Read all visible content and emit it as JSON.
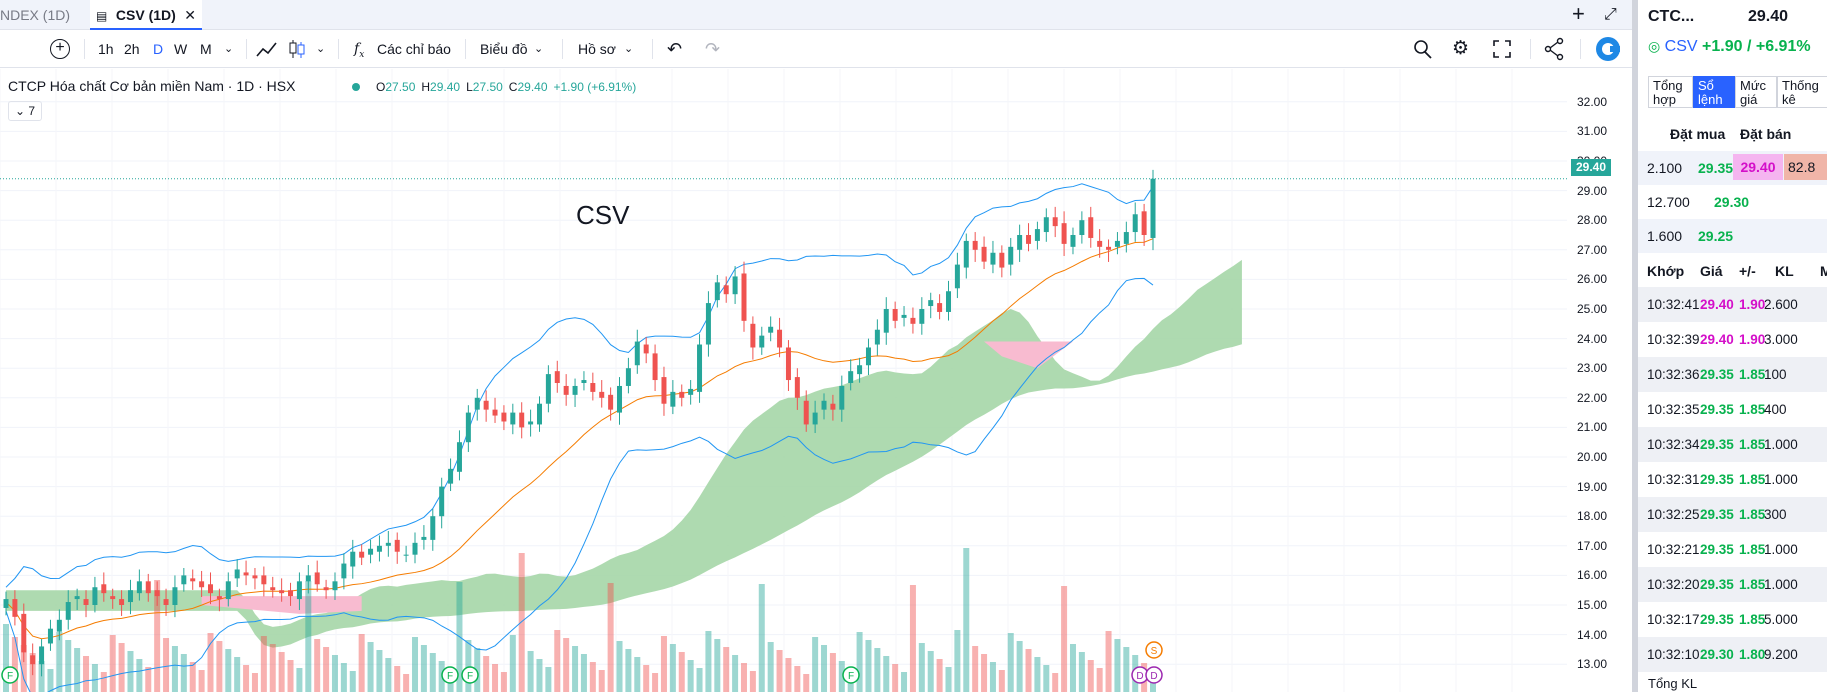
{
  "tabs": [
    {
      "label": "NDEX (1D)"
    },
    {
      "label": "CSV (1D)"
    }
  ],
  "toolbar": {
    "intervals": [
      "1h",
      "2h",
      "D",
      "W",
      "M"
    ],
    "active_interval": "D",
    "indicators_label": "Các chỉ báo",
    "chart_label": "Biểu đồ",
    "profile_label": "Hồ sơ"
  },
  "legend": {
    "title": "CTCP Hóa chất Cơ bản miền Nam · 1D · HSX",
    "o_label": "O",
    "o_val": "27.50",
    "h_label": "H",
    "h_val": "29.40",
    "l_label": "L",
    "l_val": "27.50",
    "c_label": "C",
    "c_val": "29.40",
    "change": "+1.90 (+6.91%)",
    "collapse_count": "7"
  },
  "watermark": "CSV",
  "last_price_tag": "29.40",
  "colors": {
    "up": "#26a69a",
    "down": "#ef5350",
    "accent": "#2962ff",
    "band": "#2196f3",
    "ma": "#f57c00",
    "cloud_up": "#a5d6a7",
    "cloud_down": "#f8bbd0"
  },
  "chart_data": {
    "type": "candlestick",
    "y_ticks": [
      "32.00",
      "31.00",
      "30.00",
      "29.00",
      "28.00",
      "27.00",
      "26.00",
      "25.00",
      "24.00",
      "23.00",
      "22.00",
      "21.00",
      "20.00",
      "19.00",
      "18.00",
      "17.00",
      "16.00",
      "15.00",
      "14.00",
      "13.00"
    ],
    "ylim": [
      12.6,
      32.6
    ],
    "last_close": 29.4,
    "markers": [
      "F",
      "F",
      "F",
      "F",
      "S",
      "D",
      "D"
    ],
    "close_series": [
      15.2,
      14.6,
      13.4,
      13.0,
      13.6,
      14.2,
      14.5,
      15.1,
      15.3,
      15.0,
      15.6,
      15.4,
      15.2,
      15.0,
      15.5,
      15.8,
      15.4,
      15.3,
      15.0,
      15.6,
      16.0,
      15.8,
      15.6,
      15.4,
      15.2,
      15.8,
      16.2,
      16.0,
      15.9,
      15.7,
      15.5,
      15.4,
      15.3,
      15.8,
      16.0,
      15.7,
      15.5,
      15.8,
      16.4,
      16.8,
      16.6,
      16.9,
      17.0,
      17.1,
      16.8,
      16.7,
      17.1,
      17.3,
      18.0,
      19.0,
      19.6,
      20.5,
      21.5,
      22.0,
      21.6,
      21.4,
      21.2,
      21.5,
      21.0,
      21.2,
      21.8,
      22.8,
      22.5,
      22.1,
      22.4,
      22.6,
      22.2,
      22.0,
      21.6,
      22.4,
      23.0,
      23.9,
      23.5,
      22.6,
      21.8,
      22.2,
      22.0,
      22.3,
      23.8,
      25.2,
      25.9,
      25.5,
      26.1,
      24.6,
      23.7,
      24.1,
      24.4,
      23.7,
      22.6,
      22.0,
      21.1,
      21.5,
      21.9,
      21.6,
      22.4,
      22.9,
      23.1,
      23.7,
      24.3,
      25.0,
      24.6,
      24.8,
      24.5,
      25.0,
      25.3,
      24.9,
      25.6,
      26.5,
      27.3,
      27.0,
      26.6,
      26.9,
      26.4,
      27.1,
      27.5,
      27.2,
      27.7,
      28.1,
      27.8,
      27.2,
      27.5,
      28.0,
      27.4,
      27.1,
      27.0,
      27.3,
      27.6,
      28.2,
      27.5,
      29.4
    ]
  },
  "panel": {
    "symbol_short": "CTC...",
    "price": "29.40",
    "symbol": "CSV",
    "change": "+1.90 / +6.91%",
    "tabs": [
      {
        "label": "Tổng hợp"
      },
      {
        "label": "Sổ lệnh"
      },
      {
        "label": "Mức giá"
      },
      {
        "label": "Thống kê"
      }
    ],
    "orderbook_head_buy": "Đặt mua",
    "orderbook_head_sell": "Đặt bán",
    "bids": [
      {
        "vol": "2.100",
        "price": "29.35"
      },
      {
        "vol": "12.700",
        "price": "29.30"
      },
      {
        "vol": "1.600",
        "price": "29.25"
      }
    ],
    "ask_price": "29.40",
    "ask_vol": "82.8",
    "trade_cols": [
      "Khớp",
      "Giá",
      "+/-",
      "KL",
      "M"
    ],
    "trades": [
      {
        "t": "10:32:41",
        "p": "29.40",
        "d": "1.90",
        "v": "2.600",
        "c": "up"
      },
      {
        "t": "10:32:39",
        "p": "29.40",
        "d": "1.90",
        "v": "3.000",
        "c": "up"
      },
      {
        "t": "10:32:36",
        "p": "29.35",
        "d": "1.85",
        "v": "100",
        "c": "green"
      },
      {
        "t": "10:32:35",
        "p": "29.35",
        "d": "1.85",
        "v": "400",
        "c": "green"
      },
      {
        "t": "10:32:34",
        "p": "29.35",
        "d": "1.85",
        "v": "1.000",
        "c": "green"
      },
      {
        "t": "10:32:31",
        "p": "29.35",
        "d": "1.85",
        "v": "1.000",
        "c": "green"
      },
      {
        "t": "10:32:25",
        "p": "29.35",
        "d": "1.85",
        "v": "300",
        "c": "green"
      },
      {
        "t": "10:32:21",
        "p": "29.35",
        "d": "1.85",
        "v": "1.000",
        "c": "green"
      },
      {
        "t": "10:32:20",
        "p": "29.35",
        "d": "1.85",
        "v": "1.000",
        "c": "green"
      },
      {
        "t": "10:32:17",
        "p": "29.35",
        "d": "1.85",
        "v": "5.000",
        "c": "green"
      },
      {
        "t": "10:32:10",
        "p": "29.30",
        "d": "1.80",
        "v": "9.200",
        "c": "green"
      }
    ],
    "footer": "Tổng KL"
  }
}
